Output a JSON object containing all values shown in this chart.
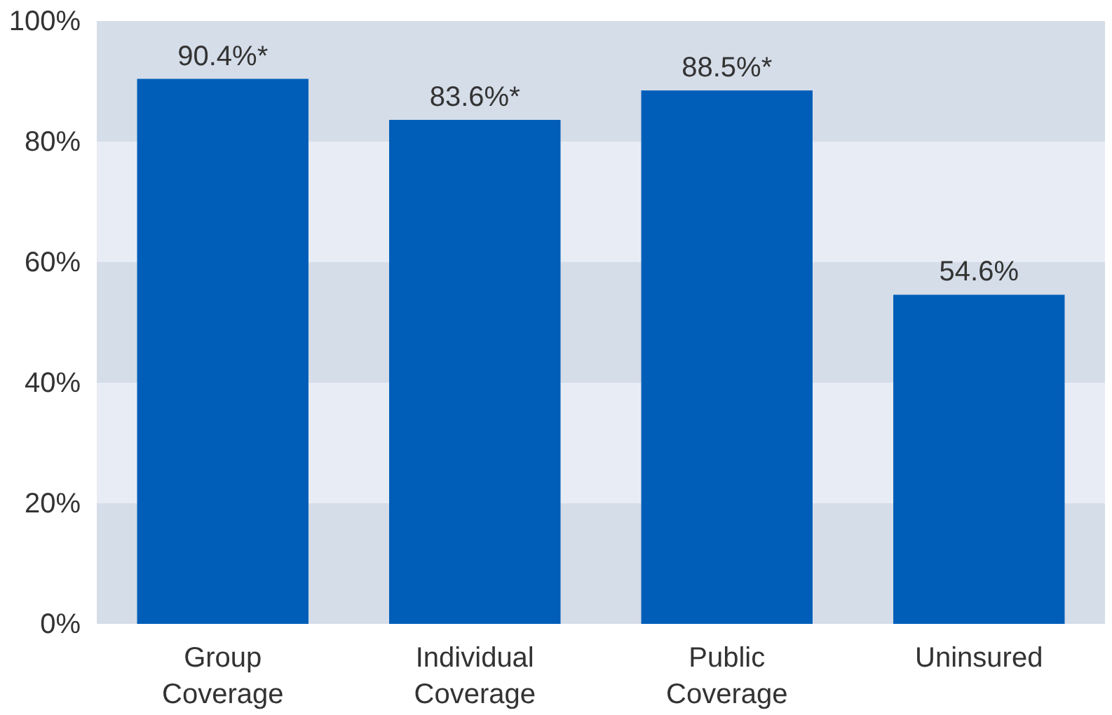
{
  "chart_data": {
    "type": "bar",
    "categories": [
      "Group Coverage",
      "Individual Coverage",
      "Public Coverage",
      "Uninsured"
    ],
    "values": [
      90.4,
      83.6,
      88.5,
      54.6
    ],
    "color": "#005eb8",
    "value_labels": [
      "90.4%*",
      "83.6%*",
      "88.5%*",
      "54.6%"
    ],
    "ylim": [
      0,
      100
    ],
    "yticks": [
      {
        "value": 0,
        "label": "0%"
      },
      {
        "value": 20,
        "label": "20%"
      },
      {
        "value": 40,
        "label": "40%"
      },
      {
        "value": 60,
        "label": "60%"
      },
      {
        "value": 80,
        "label": "80%"
      },
      {
        "value": 100,
        "label": "100%"
      }
    ],
    "bands": [
      {
        "axis": "y",
        "from": 0,
        "to": 20,
        "color": "#d5dde9"
      },
      {
        "axis": "y",
        "from": 20,
        "to": 40,
        "color": "#e8ecf4"
      },
      {
        "axis": "y",
        "from": 40,
        "to": 60,
        "color": "#d5dde9"
      },
      {
        "axis": "y",
        "from": 60,
        "to": 80,
        "color": "#e8ecf4"
      },
      {
        "axis": "y",
        "from": 80,
        "to": 100,
        "color": "#d5dde9"
      }
    ]
  }
}
